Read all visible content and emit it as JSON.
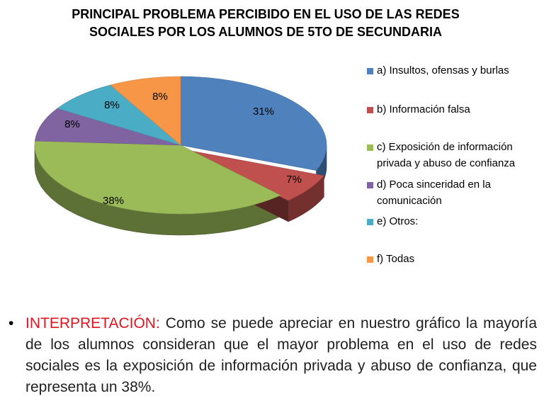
{
  "title_line1": "PRINCIPAL PROBLEMA PERCIBIDO EN EL USO DE LAS REDES",
  "title_line2": "SOCIALES POR LOS ALUMNOS DE 5TO DE SECUNDARIA",
  "chart_data": {
    "type": "pie",
    "style": "3d-exploded-slice",
    "title": "PRINCIPAL PROBLEMA PERCIBIDO EN EL USO DE LAS REDES SOCIALES POR LOS ALUMNOS DE 5TO DE SECUNDARIA",
    "legend_position": "right",
    "slices": [
      {
        "label": "a) Insultos, ofensas y burlas",
        "value": 31,
        "display": "31%",
        "color": "#4f81bd"
      },
      {
        "label": "b) Información falsa",
        "value": 7,
        "display": "7%",
        "color": "#c0504d"
      },
      {
        "label": "c) Exposición de información privada y abuso de confianza",
        "value": 38,
        "display": "38%",
        "color": "#9bbb59"
      },
      {
        "label": "d) Poca sinceridad en la comunicación",
        "value": 8,
        "display": "8%",
        "color": "#8064a2"
      },
      {
        "label": "e) Otros:",
        "value": 8,
        "display": "8%",
        "color": "#4bacc6"
      },
      {
        "label": "f) Todas",
        "value": 8,
        "display": "8%",
        "color": "#f79646"
      }
    ]
  },
  "interpretation": {
    "bullet": "•",
    "label": "INTERPRETACIÓN:",
    "text": " Como se puede apreciar en nuestro gráfico la mayoría de los alumnos consideran que el mayor  problema en el uso de redes sociales es la exposición  de información privada y abuso de confianza, que representa un 38%."
  }
}
